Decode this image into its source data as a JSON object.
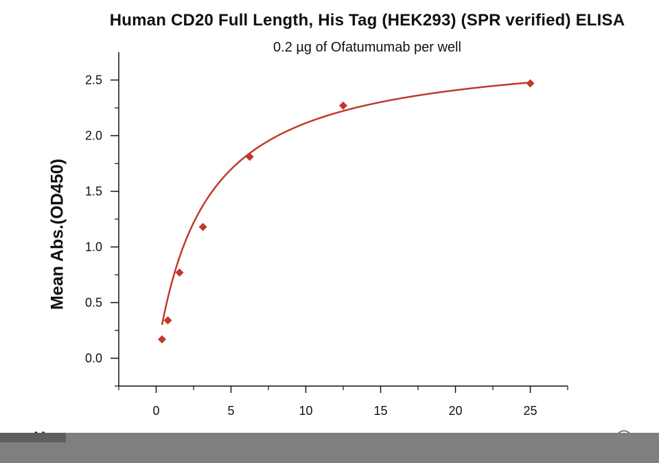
{
  "chart_data": {
    "type": "scatter",
    "title": "Human CD20 Full Length, His Tag (HEK293) (SPR verified) ELISA",
    "subtitle": "0.2 µg of Ofatumumab per well",
    "xlabel": "",
    "ylabel": "Mean Abs.(OD450)",
    "xlim": [
      -2.5,
      27.5
    ],
    "ylim": [
      -0.25,
      2.75
    ],
    "x_ticks": [
      0,
      5,
      10,
      15,
      20,
      25
    ],
    "y_ticks": [
      0.0,
      0.5,
      1.0,
      1.5,
      2.0,
      2.5
    ],
    "x_tick_labels": [
      "0",
      "5",
      "10",
      "15",
      "20",
      "25"
    ],
    "y_tick_labels": [
      "0.0",
      "0.5",
      "1.0",
      "1.5",
      "2.0",
      "2.5"
    ],
    "grid": false,
    "marker_color": "#c0392b",
    "line_color": "#c0392b",
    "series": [
      {
        "x": [
          0.39,
          0.78,
          1.56,
          3.125,
          6.25,
          12.5,
          25
        ],
        "y": [
          0.17,
          0.34,
          0.77,
          1.18,
          1.81,
          2.27,
          2.47
        ]
      }
    ],
    "fit_curve": {
      "type": "hyperbolic",
      "ymax": 2.8,
      "kd": 3.25
    }
  },
  "bottom_text": "Hur",
  "bottom_mark": "⌒"
}
